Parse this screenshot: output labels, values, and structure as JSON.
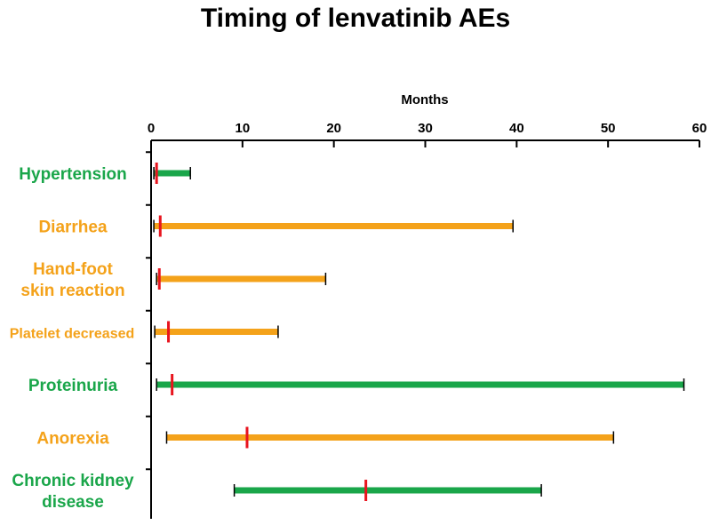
{
  "chart_data": {
    "type": "range-bar",
    "title": "Timing of lenvatinib AEs",
    "xlabel": "Months",
    "x_axis_position": "top",
    "xlim": [
      0,
      60
    ],
    "xticks": [
      0,
      10,
      20,
      30,
      40,
      50,
      60
    ],
    "grid": false,
    "legend": "none",
    "colors": {
      "green": "#1aa64a",
      "orange": "#f4a21a",
      "marker": "#e8141e"
    },
    "series": [
      {
        "label": [
          "Hypertension"
        ],
        "start": 0.3,
        "end": 4.3,
        "marker": 0.6,
        "color": "green"
      },
      {
        "label": [
          "Diarrhea"
        ],
        "start": 0.3,
        "end": 39.6,
        "marker": 1.0,
        "color": "orange"
      },
      {
        "label": [
          "Hand-foot",
          "skin reaction"
        ],
        "start": 0.6,
        "end": 19.1,
        "marker": 0.9,
        "color": "orange"
      },
      {
        "label": [
          "Platelet decreased"
        ],
        "start": 0.4,
        "end": 13.9,
        "marker": 1.9,
        "color": "orange"
      },
      {
        "label": [
          "Proteinuria"
        ],
        "start": 0.6,
        "end": 58.3,
        "marker": 2.3,
        "color": "green"
      },
      {
        "label": [
          "Anorexia"
        ],
        "start": 1.7,
        "end": 50.6,
        "marker": 10.5,
        "color": "orange"
      },
      {
        "label": [
          "Chronic kidney",
          "disease"
        ],
        "start": 9.1,
        "end": 42.7,
        "marker": 23.5,
        "color": "green"
      }
    ]
  }
}
